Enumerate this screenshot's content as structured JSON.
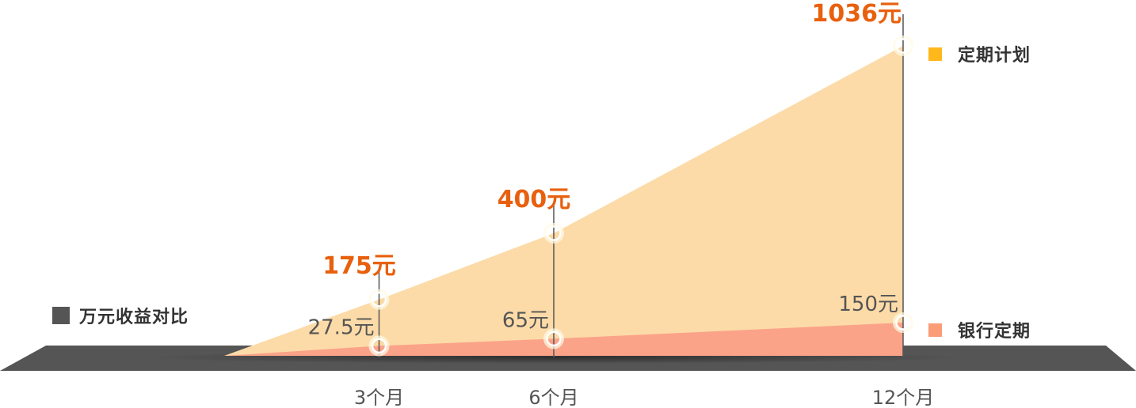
{
  "caption": "万元收益对比",
  "colors": {
    "plan_fill": "#fcdba8",
    "plan_legend": "#ffb81c",
    "bank_fill": "#fba389",
    "bank_legend": "#fb9c78",
    "value_orange": "#e8600e",
    "value_gray": "#555555",
    "ground": "#555555"
  },
  "chart_data": {
    "type": "area",
    "categories": [
      "3个月",
      "6个月",
      "12个月"
    ],
    "x_months": [
      3,
      6,
      12
    ],
    "series": [
      {
        "name": "定期计划",
        "values": [
          175,
          400,
          1036
        ],
        "labels": [
          "175元",
          "400元",
          "1036元"
        ]
      },
      {
        "name": "银行定期",
        "values": [
          27.5,
          65,
          150
        ],
        "labels": [
          "27.5元",
          "65元",
          "150元"
        ]
      }
    ],
    "legend": [
      "定期计划",
      "银行定期"
    ],
    "legend_position": "right",
    "grid": false
  }
}
